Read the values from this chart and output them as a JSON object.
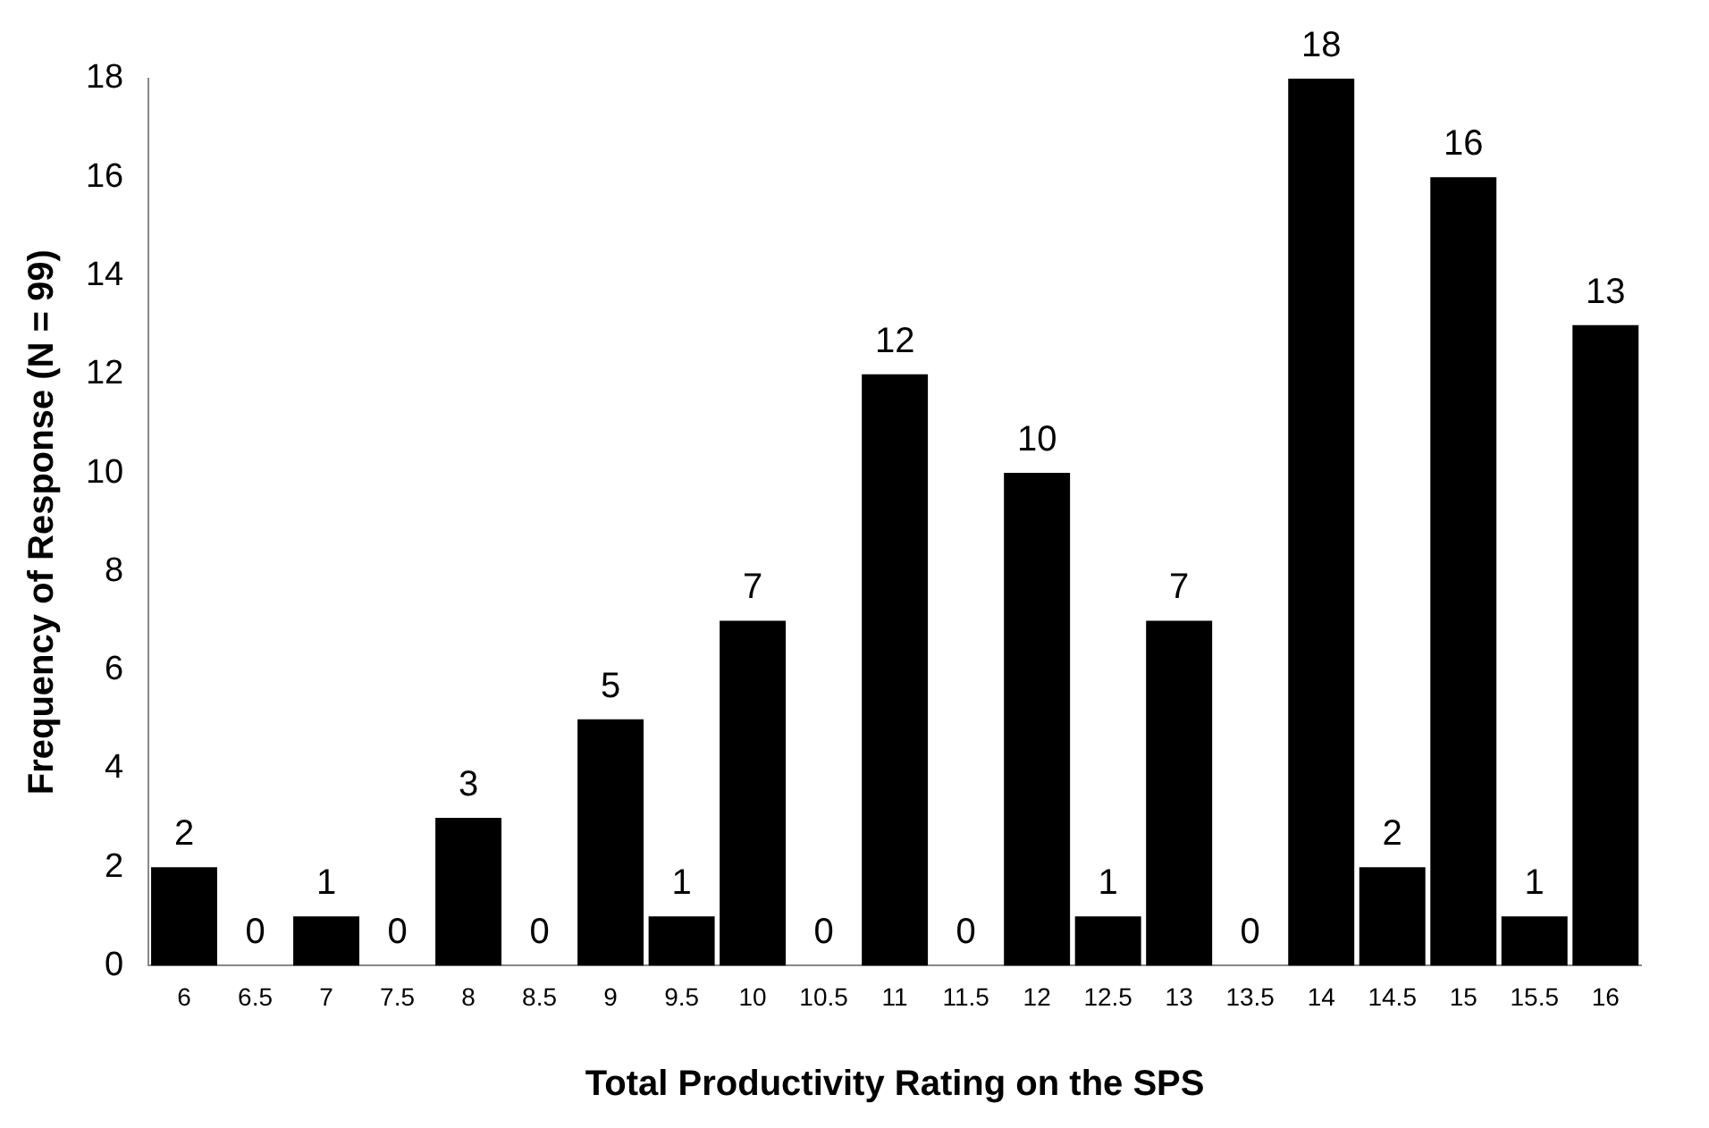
{
  "chart_data": {
    "type": "bar",
    "xlabel": "Total Productivity Rating on the SPS",
    "ylabel": "Frequency of Response (N = 99)",
    "categories": [
      "6",
      "6.5",
      "7",
      "7.5",
      "8",
      "8.5",
      "9",
      "9.5",
      "10",
      "10.5",
      "11",
      "11.5",
      "12",
      "12.5",
      "13",
      "13.5",
      "14",
      "14.5",
      "15",
      "15.5",
      "16"
    ],
    "values": [
      2,
      0,
      1,
      0,
      3,
      0,
      5,
      1,
      7,
      0,
      12,
      0,
      10,
      1,
      7,
      0,
      18,
      2,
      16,
      1,
      13
    ],
    "color": "#000000",
    "ylim": [
      0,
      18
    ],
    "yticks": [
      0,
      2,
      4,
      6,
      8,
      10,
      12,
      14,
      16,
      18
    ],
    "grid": false,
    "legend": false,
    "data_labels": true
  }
}
